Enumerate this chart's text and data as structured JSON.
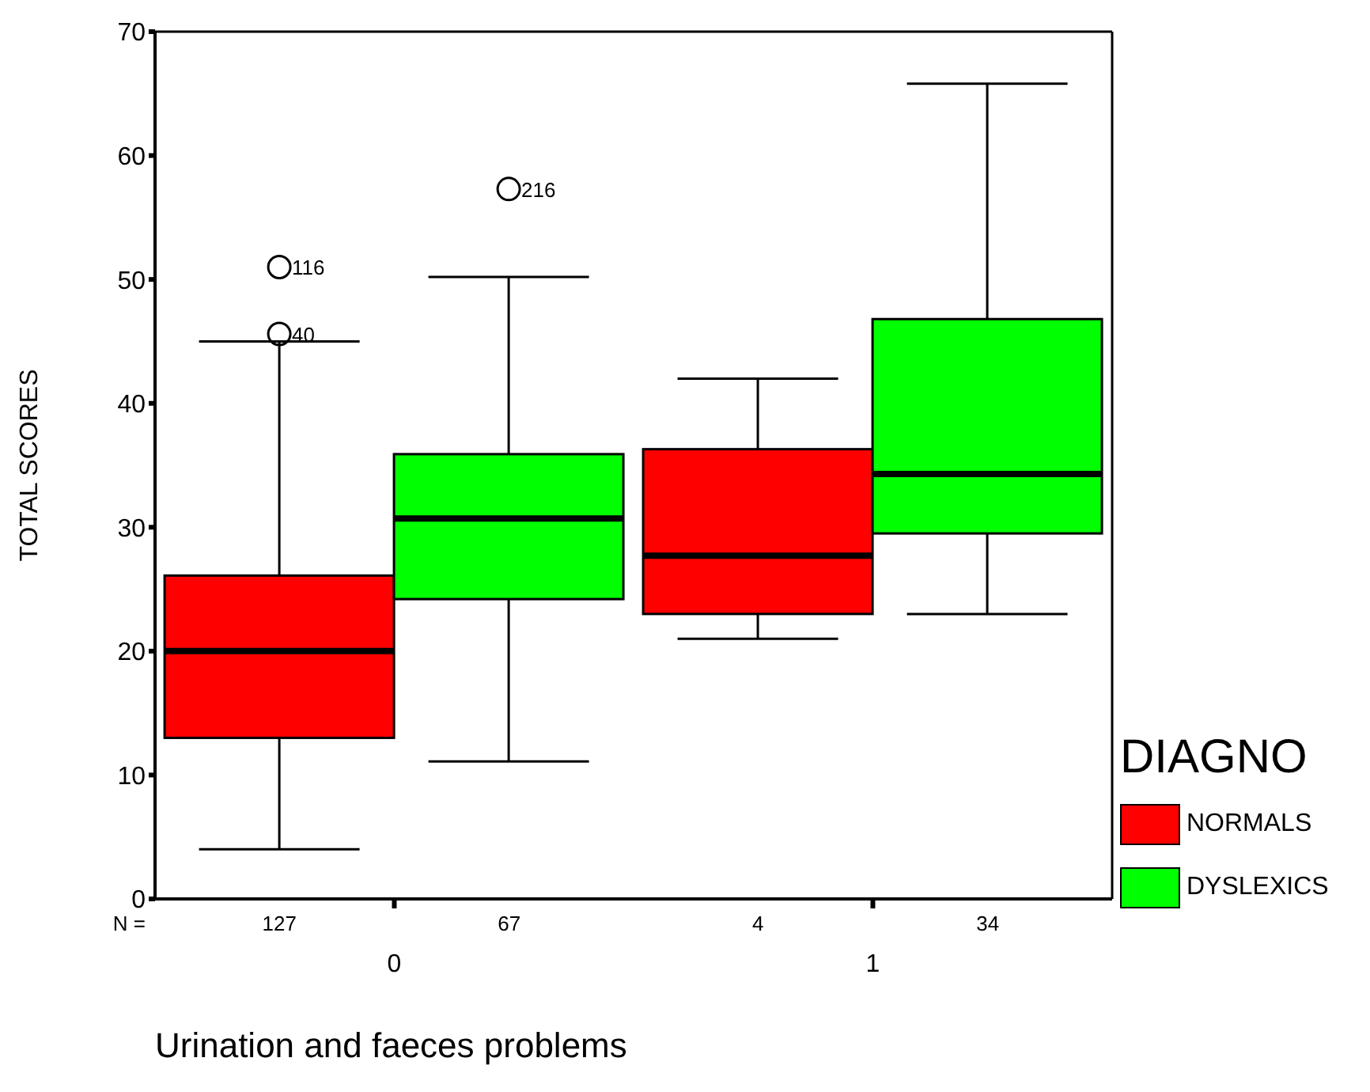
{
  "chart_data": {
    "type": "box",
    "xlabel": "Urination and faeces problems",
    "ylabel": "TOTAL SCORES",
    "legend_title": "DIAGNO",
    "legend": "right",
    "categories": [
      "0",
      "1"
    ],
    "ylim": [
      0,
      70
    ],
    "yticks": [
      0,
      10,
      20,
      30,
      40,
      50,
      60,
      70
    ],
    "series": [
      {
        "name": "NORMALS",
        "color": "#ff0000",
        "boxes": [
          {
            "low": 4,
            "q1": 13,
            "median": 20,
            "q3": 26.1,
            "high": 45,
            "outliers": [
              45.6,
              51
            ]
          },
          {
            "low": 21,
            "q1": 23,
            "median": 27.7,
            "q3": 36.3,
            "high": 42
          }
        ]
      },
      {
        "name": "DYSLEXICS",
        "color": "#00ff00",
        "boxes": [
          {
            "low": 11.1,
            "q1": 24.2,
            "median": 30.7,
            "q3": 35.9,
            "high": 50.2,
            "outliers": [
              57.3
            ]
          },
          {
            "low": 23,
            "q1": 29.5,
            "median": 34.3,
            "q3": 46.8,
            "high": 65.8
          }
        ]
      }
    ],
    "annotations": [
      "N =",
      "127",
      "67",
      "4",
      "34",
      "40",
      "116",
      "216"
    ]
  }
}
